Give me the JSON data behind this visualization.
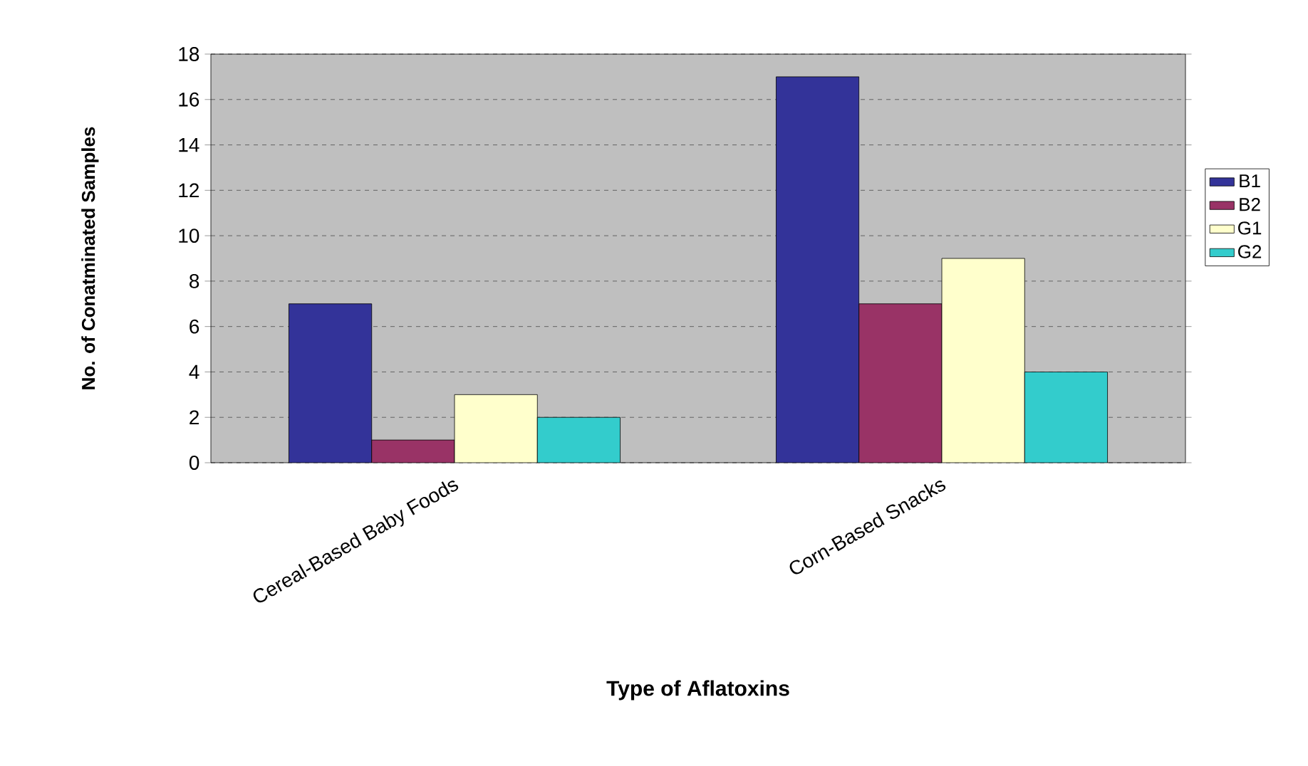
{
  "chart_data": {
    "type": "bar",
    "xlabel": "Type of Aflatoxins",
    "ylabel": "No. of Conatminated Samples",
    "categories": [
      "Cereal-Based Baby Foods",
      "Corn-Based Snacks"
    ],
    "series": [
      {
        "name": "B1",
        "color": "#333399",
        "values": [
          7,
          17
        ]
      },
      {
        "name": "B2",
        "color": "#993366",
        "values": [
          1,
          7
        ]
      },
      {
        "name": "G1",
        "color": "#ffffcc",
        "values": [
          3,
          9
        ]
      },
      {
        "name": "G2",
        "color": "#33cccc",
        "values": [
          2,
          4
        ]
      }
    ],
    "ylim": [
      0,
      18
    ],
    "yticks": [
      0,
      2,
      4,
      6,
      8,
      10,
      12,
      14,
      16,
      18
    ],
    "grid": "y",
    "legend": "right"
  }
}
